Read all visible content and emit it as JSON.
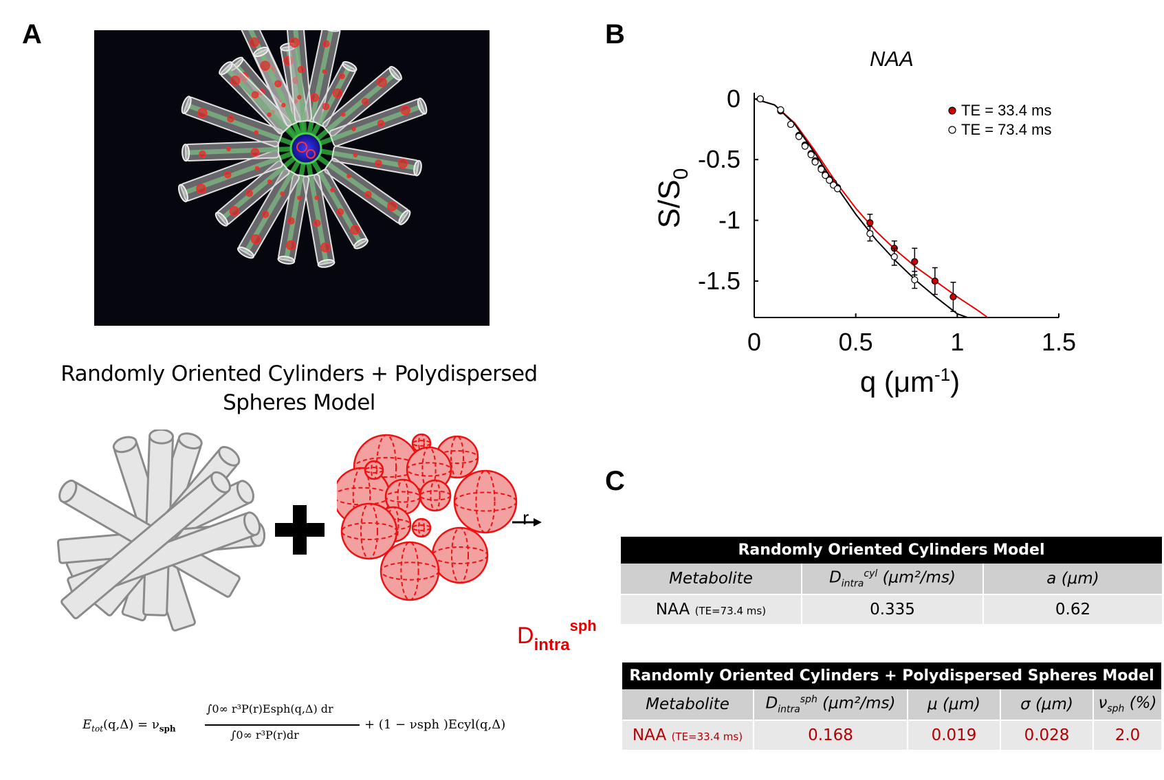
{
  "panels": {
    "a": "A",
    "b": "B",
    "c": "C"
  },
  "model_title": "Randomly Oriented Cylinders + Polydispersed Spheres Model",
  "sphere_radius_label": "r",
  "d_intra_label": {
    "base": "D",
    "sub": "intra",
    "sup": "sph"
  },
  "equation": {
    "lhs": "E",
    "lhs_sub": "tot",
    "lhs_args": "(q,Δ) = ν",
    "nu_sub": "sph",
    "numerator": "∫0∞ r³P(r)Esph(q,Δ) dr",
    "denominator": "∫0∞ r³P(r)dr",
    "tail": "+ (1 − νsph )Ecyl(q,Δ)"
  },
  "chart_title": "NAA",
  "chart_data": {
    "type": "scatter",
    "title": "NAA",
    "xlabel": "q (μm-1)",
    "ylabel": "S/S0",
    "xlim": [
      0,
      1.5
    ],
    "ylim": [
      -1.8,
      0.05
    ],
    "xticks": [
      "0",
      "0.5",
      "1",
      "1.5"
    ],
    "yticks": [
      "0",
      "-0.5",
      "-1",
      "-1.5"
    ],
    "legend_position": "top-right",
    "series": [
      {
        "name": "TE = 33.4 ms",
        "color": "#cc0000",
        "x": [
          0.03,
          0.13,
          0.18,
          0.22,
          0.25,
          0.28,
          0.3,
          0.33,
          0.35,
          0.37,
          0.39,
          0.41,
          0.57,
          0.69,
          0.79,
          0.89,
          0.98
        ],
        "y": [
          0.0,
          -0.1,
          -0.21,
          -0.3,
          -0.38,
          -0.45,
          -0.51,
          -0.57,
          -0.62,
          -0.66,
          -0.69,
          -0.73,
          -1.02,
          -1.23,
          -1.34,
          -1.5,
          -1.63
        ],
        "err": [
          0,
          0,
          0,
          0,
          0,
          0,
          0,
          0,
          0,
          0,
          0,
          0,
          0.07,
          0.06,
          0.11,
          0.11,
          0.12
        ]
      },
      {
        "name": "TE = 73.4 ms",
        "color": "#000000",
        "x": [
          0.03,
          0.13,
          0.18,
          0.22,
          0.25,
          0.28,
          0.3,
          0.33,
          0.35,
          0.37,
          0.39,
          0.41,
          0.57,
          0.69,
          0.79
        ],
        "y": [
          0.0,
          -0.09,
          -0.21,
          -0.31,
          -0.39,
          -0.46,
          -0.52,
          -0.58,
          -0.63,
          -0.67,
          -0.71,
          -0.74,
          -1.11,
          -1.3,
          -1.49
        ],
        "err": [
          0,
          0,
          0,
          0,
          0,
          0,
          0,
          0,
          0,
          0,
          0,
          0,
          0.06,
          0.07,
          0.07
        ]
      }
    ],
    "fits": [
      {
        "color": "#ee0000",
        "x": [
          0,
          0.1,
          0.2,
          0.3,
          0.4,
          0.5,
          0.6,
          0.7,
          0.8,
          0.9,
          1.0,
          1.1,
          1.15
        ],
        "y": [
          0,
          -0.05,
          -0.2,
          -0.43,
          -0.68,
          -0.9,
          -1.09,
          -1.25,
          -1.39,
          -1.51,
          -1.63,
          -1.74,
          -1.8
        ]
      },
      {
        "color": "#000000",
        "x": [
          0,
          0.1,
          0.2,
          0.3,
          0.4,
          0.5,
          0.6,
          0.7,
          0.8,
          0.9,
          1.0,
          1.05
        ],
        "y": [
          0,
          -0.05,
          -0.21,
          -0.45,
          -0.71,
          -0.95,
          -1.16,
          -1.34,
          -1.5,
          -1.64,
          -1.77,
          -1.82
        ]
      }
    ]
  },
  "table1": {
    "title": "Randomly Oriented Cylinders Model",
    "headers": [
      "Metabolite",
      "D",
      "a (μm)"
    ],
    "d_header": {
      "base": "D",
      "sub": "intra",
      "sup": "cyl",
      "tail": " (μm²/ms)"
    },
    "row": {
      "name": "NAA",
      "note": "(TE=73.4 ms)",
      "values": [
        "0.335",
        "0.62"
      ]
    }
  },
  "table2": {
    "title": "Randomly Oriented Cylinders + Polydispersed Spheres Model",
    "headers": [
      "Metabolite",
      "D",
      "μ (μm)",
      "σ (μm)",
      "ν"
    ],
    "d_header": {
      "base": "D",
      "sub": "intra",
      "sup": "sph",
      "tail": " (μm²/ms)"
    },
    "nu_header": {
      "base": "ν",
      "sub": "sph",
      "tail": " (%)"
    },
    "row": {
      "name": "NAA",
      "note": "(TE=33.4 ms)",
      "values": [
        "0.168",
        "0.019",
        "0.028",
        "2.0"
      ]
    }
  }
}
